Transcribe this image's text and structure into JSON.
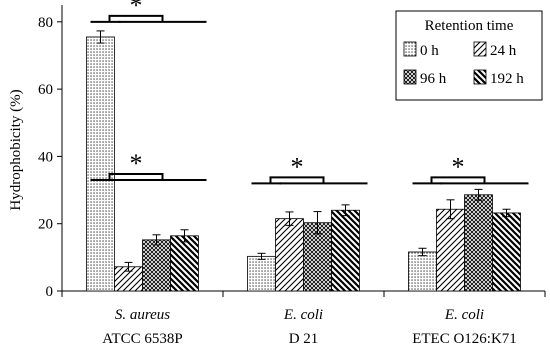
{
  "chart_data": {
    "type": "bar",
    "ylabel": "Hydrophobicity (%)",
    "ylim": [
      0,
      85
    ],
    "yticks": [
      0,
      20,
      40,
      60,
      80
    ],
    "grid": false,
    "legend": {
      "title": "Retention time",
      "placement": "top-right",
      "columns": 2
    },
    "categories": [
      {
        "italic": "S. aureus",
        "strain": "ATCC 6538P"
      },
      {
        "italic": "E. coli",
        "strain": "D 21"
      },
      {
        "italic": "E. coli",
        "strain": "ETEC O126:K71"
      }
    ],
    "series": [
      {
        "name": "0 h",
        "pattern": "dots",
        "values": [
          75.5,
          10.3,
          11.6
        ],
        "errors": [
          1.8,
          0.9,
          1.1
        ]
      },
      {
        "name": "24 h",
        "pattern": "diag-light",
        "values": [
          7.2,
          21.5,
          24.3
        ],
        "errors": [
          1.3,
          2.0,
          2.8
        ]
      },
      {
        "name": "96 h",
        "pattern": "cross",
        "values": [
          15.2,
          20.3,
          28.6
        ],
        "errors": [
          1.5,
          3.3,
          1.6
        ]
      },
      {
        "name": "192 h",
        "pattern": "diag-bold",
        "values": [
          16.4,
          24.0,
          23.2
        ],
        "errors": [
          1.8,
          1.6,
          1.1
        ]
      }
    ],
    "significance": [
      {
        "label": "*",
        "category": 0,
        "type": "split-top",
        "level": 80
      },
      {
        "label": "*",
        "category": 0,
        "type": "split-low",
        "level": 33
      },
      {
        "label": "*",
        "category": 1,
        "type": "split-low",
        "level": 32
      },
      {
        "label": "*",
        "category": 2,
        "type": "split-low",
        "level": 32
      }
    ]
  }
}
